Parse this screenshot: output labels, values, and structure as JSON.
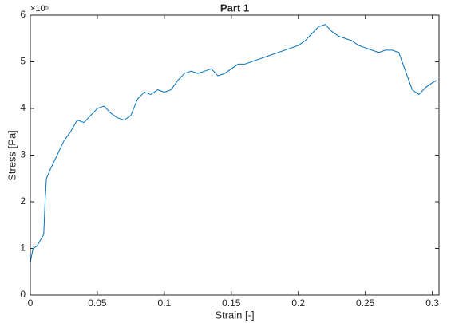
{
  "chart_data": {
    "type": "line",
    "title": "Part 1",
    "x_label": "Strain [-]",
    "y_label": "Stress [Pa]",
    "y_multiplier": "×10⁵",
    "x": [
      0,
      0.002,
      0.005,
      0.008,
      0.01,
      0.011,
      0.012,
      0.015,
      0.02,
      0.025,
      0.03,
      0.035,
      0.04,
      0.045,
      0.05,
      0.055,
      0.06,
      0.065,
      0.07,
      0.075,
      0.08,
      0.085,
      0.09,
      0.095,
      0.1,
      0.105,
      0.11,
      0.115,
      0.12,
      0.125,
      0.13,
      0.135,
      0.14,
      0.145,
      0.15,
      0.155,
      0.16,
      0.165,
      0.17,
      0.175,
      0.18,
      0.185,
      0.19,
      0.195,
      0.2,
      0.205,
      0.21,
      0.215,
      0.22,
      0.225,
      0.23,
      0.235,
      0.24,
      0.245,
      0.25,
      0.255,
      0.26,
      0.265,
      0.27,
      0.275,
      0.28,
      0.285,
      0.29,
      0.295,
      0.3,
      0.303
    ],
    "series": [
      {
        "name": "Stress",
        "color": "#0072bd",
        "values": [
          0.7,
          1.0,
          1.05,
          1.2,
          1.3,
          2.0,
          2.5,
          2.7,
          3.0,
          3.3,
          3.5,
          3.75,
          3.7,
          3.85,
          4.0,
          4.05,
          3.9,
          3.8,
          3.75,
          3.85,
          4.2,
          4.35,
          4.3,
          4.4,
          4.35,
          4.4,
          4.6,
          4.75,
          4.8,
          4.75,
          4.8,
          4.85,
          4.7,
          4.75,
          4.85,
          4.95,
          4.95,
          5.0,
          5.05,
          5.1,
          5.15,
          5.2,
          5.25,
          5.3,
          5.35,
          5.45,
          5.6,
          5.75,
          5.8,
          5.65,
          5.55,
          5.5,
          5.45,
          5.35,
          5.3,
          5.25,
          5.2,
          5.25,
          5.25,
          5.2,
          4.8,
          4.4,
          4.3,
          4.45,
          4.55,
          4.6
        ]
      }
    ],
    "xlim": [
      0,
      0.305
    ],
    "xticks": [
      0,
      0.05,
      0.1,
      0.15,
      0.2,
      0.25,
      0.3
    ],
    "ylim": [
      0,
      6
    ],
    "yticks": [
      0,
      1,
      2,
      3,
      4,
      5,
      6
    ]
  }
}
